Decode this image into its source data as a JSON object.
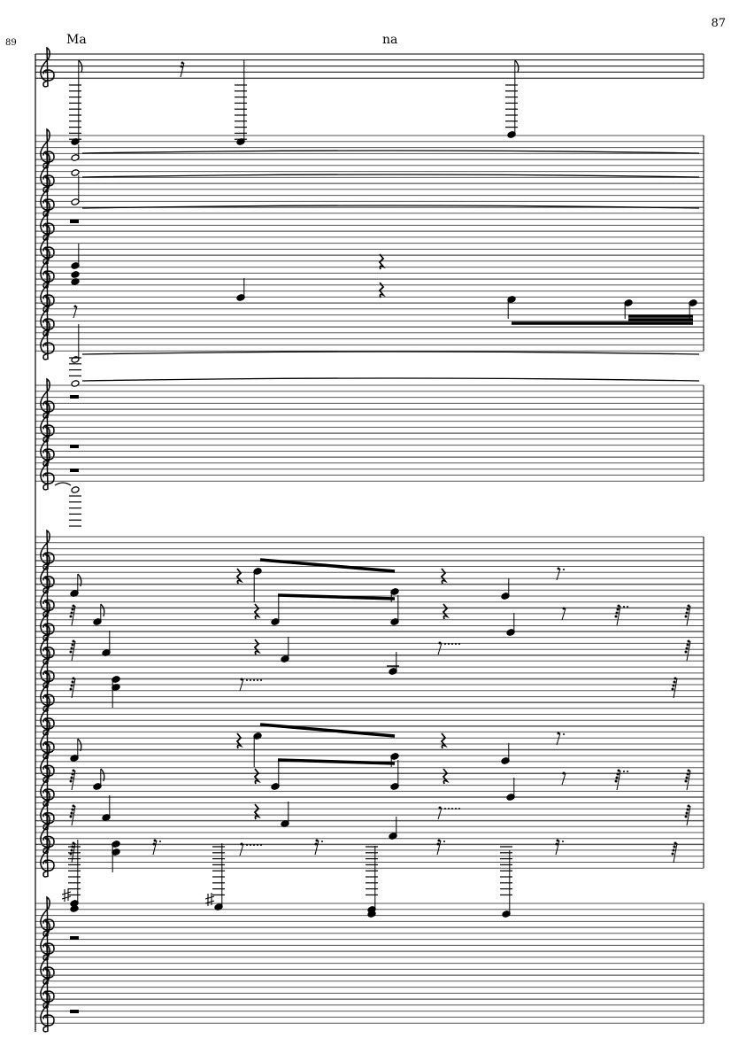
{
  "page": {
    "page_number": "87",
    "measure_number": "89",
    "lyrics": [
      "Ma",
      "na"
    ]
  },
  "score": {
    "clef": "treble",
    "ink_color": "#000000",
    "staff_line_color": "#555555"
  }
}
